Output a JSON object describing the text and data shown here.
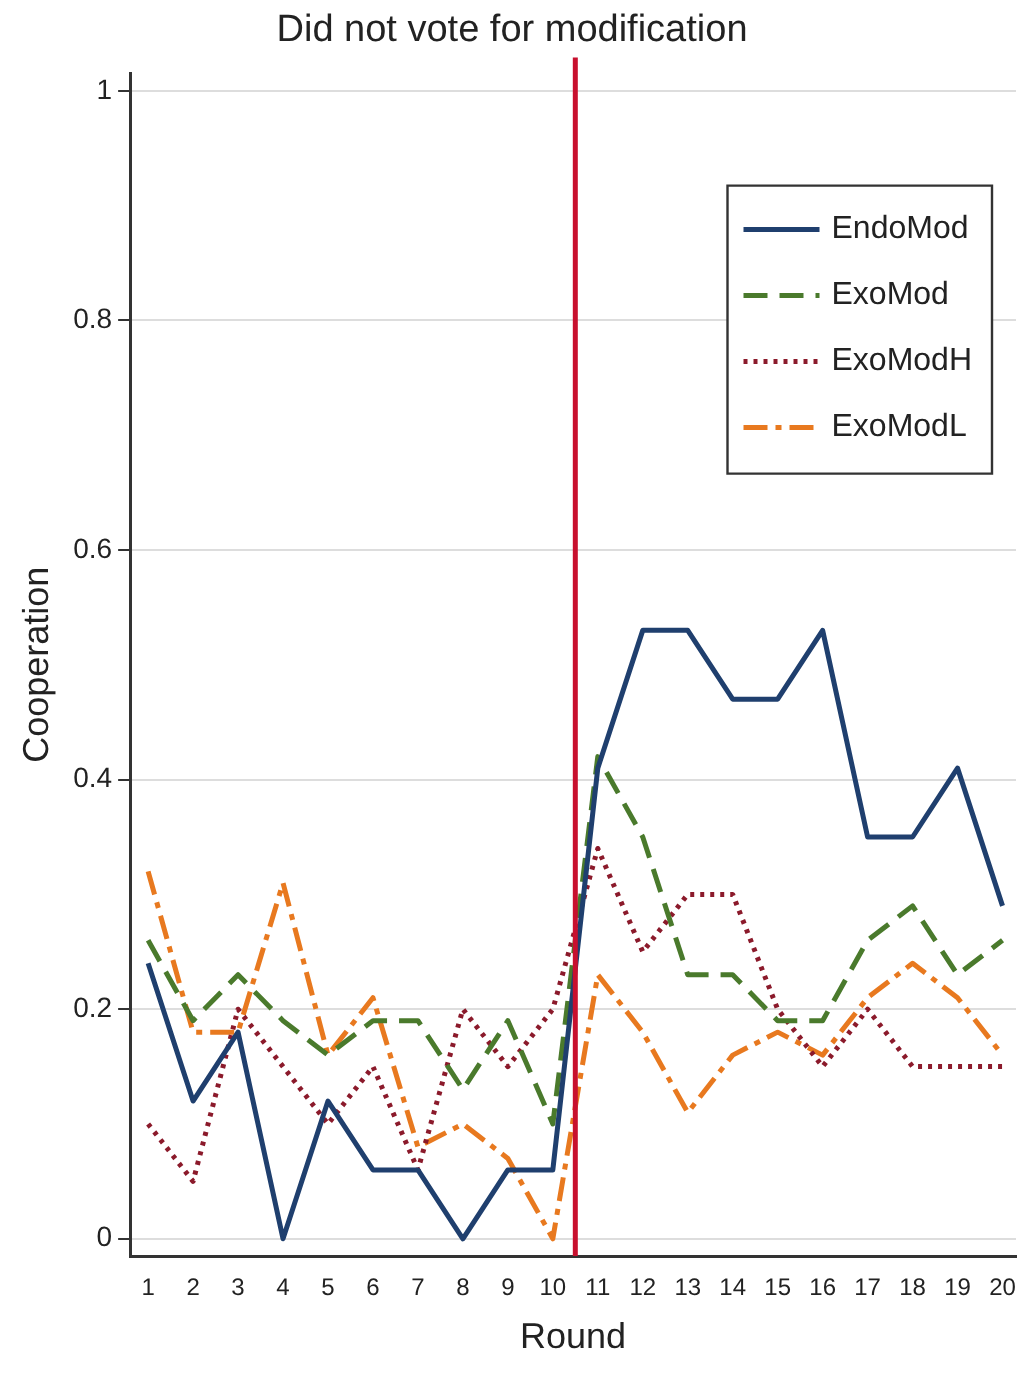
{
  "chart_data": {
    "type": "line",
    "title": "Did not vote for modification",
    "xlabel": "Round",
    "ylabel": "Cooperation",
    "x": [
      1,
      2,
      3,
      4,
      5,
      6,
      7,
      8,
      9,
      10,
      11,
      12,
      13,
      14,
      15,
      16,
      17,
      18,
      19,
      20
    ],
    "xlim": [
      0.6,
      20.3
    ],
    "xticks": [
      1,
      2,
      3,
      4,
      5,
      6,
      7,
      8,
      9,
      10,
      11,
      12,
      13,
      14,
      15,
      16,
      17,
      18,
      19,
      20
    ],
    "ylim": [
      -0.015,
      1.015
    ],
    "yticks": [
      0,
      0.2,
      0.4,
      0.6,
      0.8,
      1
    ],
    "grid": "y",
    "legend": "top right",
    "marker": "none",
    "ref_lines": [
      {
        "axis": "x",
        "value": 10.5,
        "color": "#c8102e"
      }
    ],
    "series": [
      {
        "name": "EndoMod",
        "color": "#1f3f6e",
        "line_style": "solid",
        "values": [
          0.24,
          0.12,
          0.18,
          0,
          0.12,
          0.06,
          0.06,
          0,
          0.06,
          0.06,
          0.41,
          0.53,
          0.53,
          0.47,
          0.47,
          0.53,
          0.35,
          0.35,
          0.41,
          0.29
        ]
      },
      {
        "name": "ExoMod",
        "color": "#4a7a2c",
        "line_style": "dashed",
        "values": [
          0.26,
          0.19,
          0.23,
          0.19,
          0.16,
          0.19,
          0.19,
          0.13,
          0.19,
          0.1,
          0.42,
          0.35,
          0.23,
          0.23,
          0.19,
          0.19,
          0.26,
          0.29,
          0.23,
          0.26
        ]
      },
      {
        "name": "ExoModH",
        "color": "#8b1a2b",
        "line_style": "dotted",
        "values": [
          0.1,
          0.05,
          0.2,
          0.15,
          0.1,
          0.15,
          0.06,
          0.2,
          0.15,
          0.2,
          0.34,
          0.25,
          0.3,
          0.3,
          0.2,
          0.15,
          0.2,
          0.15,
          0.15,
          0.15
        ]
      },
      {
        "name": "ExoModL",
        "color": "#e8791f",
        "line_style": "dashdot",
        "values": [
          0.32,
          0.18,
          0.18,
          0.31,
          0.16,
          0.21,
          0.08,
          0.1,
          0.07,
          0,
          0.23,
          0.18,
          0.11,
          0.16,
          0.18,
          0.16,
          0.21,
          0.24,
          0.21,
          0.16
        ]
      }
    ]
  }
}
